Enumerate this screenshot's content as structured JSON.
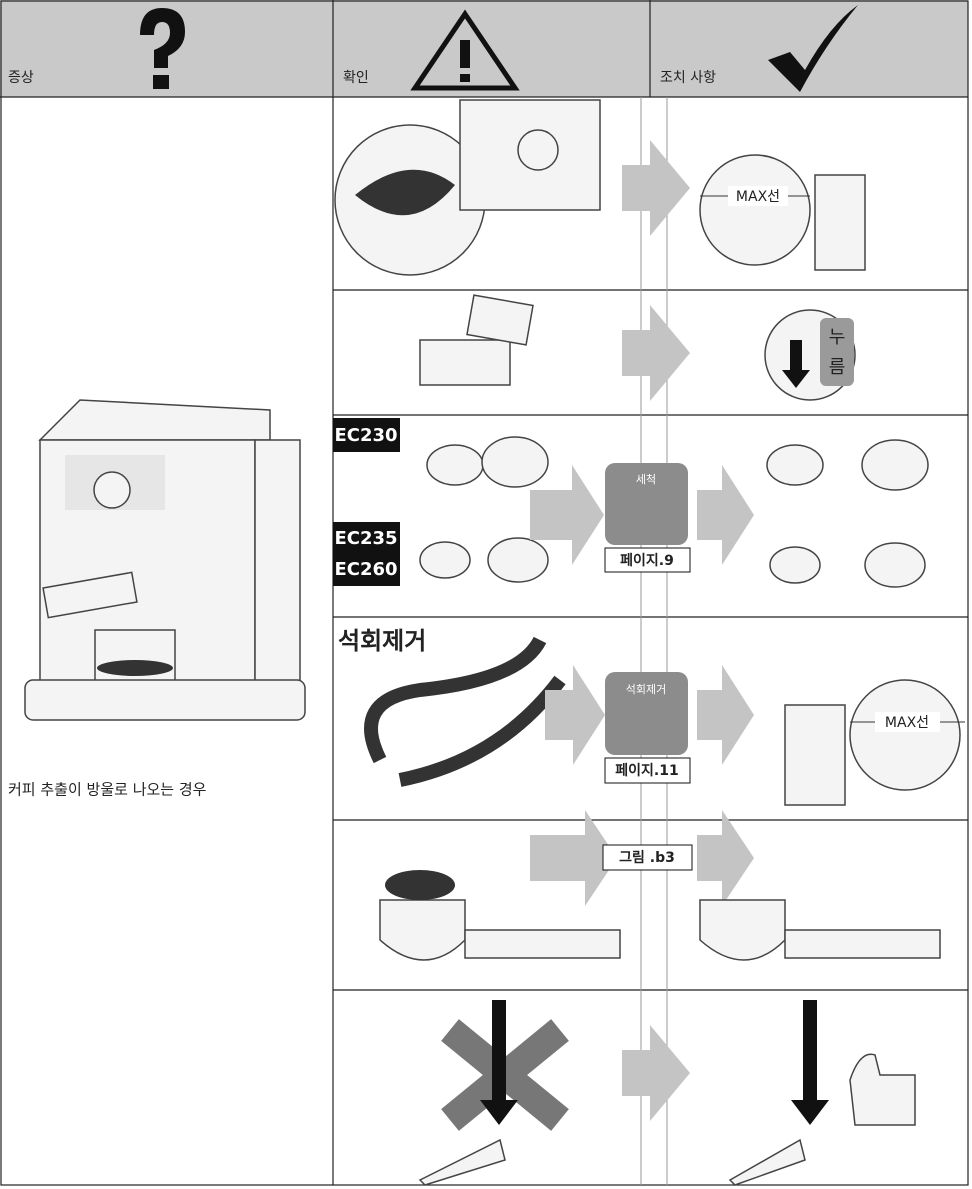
{
  "header": {
    "symptom": "증상",
    "check": "확인",
    "action": "조치 사항"
  },
  "symptom": "커피 추출이  방울로 나오는 경우",
  "rows": [
    {
      "action_label": "MAX선"
    },
    {
      "action_label": [
        "누",
        "름"
      ]
    },
    {
      "models_a": [
        "EC230"
      ],
      "models_b": [
        "EC235",
        "EC260"
      ],
      "icon_label": "세척",
      "page_ref": "페이지.9"
    },
    {
      "title": "석회제거",
      "icon_label": "석회제거",
      "page_ref": "페이지.11",
      "action_label": "MAX선"
    },
    {
      "page_ref": "그림 .b3"
    }
  ]
}
